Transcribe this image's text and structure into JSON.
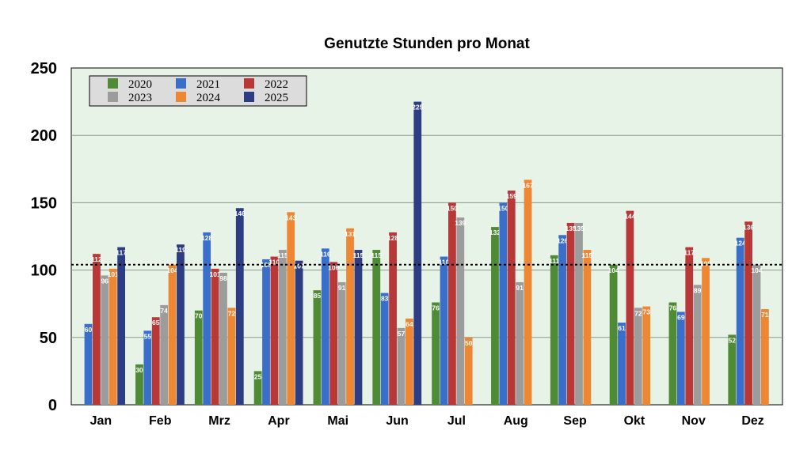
{
  "chart_data": {
    "type": "bar",
    "title": "Genutzte Stunden pro Monat",
    "xlabel": "",
    "ylabel": "",
    "ylim": [
      0,
      250
    ],
    "yticks": [
      0,
      50,
      100,
      150,
      200,
      250
    ],
    "grid": "horizontal",
    "background_color": "#e8f3e8",
    "legend_position": "top-left",
    "reference_line": {
      "value": 104,
      "style": "dotted"
    },
    "categories": [
      "Jan",
      "Feb",
      "Mrz",
      "Apr",
      "Mai",
      "Jun",
      "Jul",
      "Aug",
      "Sep",
      "Okt",
      "Nov",
      "Dez"
    ],
    "series": [
      {
        "name": "2020",
        "color": "#4f8a35",
        "values": [
          null,
          30,
          70,
          25,
          85,
          115,
          76,
          132,
          111,
          104,
          76,
          52
        ]
      },
      {
        "name": "2021",
        "color": "#3a6fc9",
        "values": [
          60,
          55,
          128,
          108,
          116,
          83,
          110,
          150,
          126,
          61,
          69,
          124
        ]
      },
      {
        "name": "2022",
        "color": "#b83838",
        "values": [
          112,
          65,
          101,
          110,
          106,
          128,
          150,
          159,
          135,
          144,
          117,
          136
        ]
      },
      {
        "name": "2023",
        "color": "#9c9c9c",
        "values": [
          96,
          74,
          98,
          115,
          91,
          57,
          139,
          91,
          135,
          72,
          89,
          104
        ]
      },
      {
        "name": "2024",
        "color": "#ee8733",
        "values": [
          101,
          104,
          72,
          143,
          131,
          64,
          50,
          167,
          115,
          73,
          109,
          71
        ]
      },
      {
        "name": "2025",
        "color": "#2c3d83",
        "values": [
          117,
          119,
          146,
          107,
          115,
          225,
          null,
          null,
          null,
          null,
          null,
          null
        ]
      }
    ]
  }
}
